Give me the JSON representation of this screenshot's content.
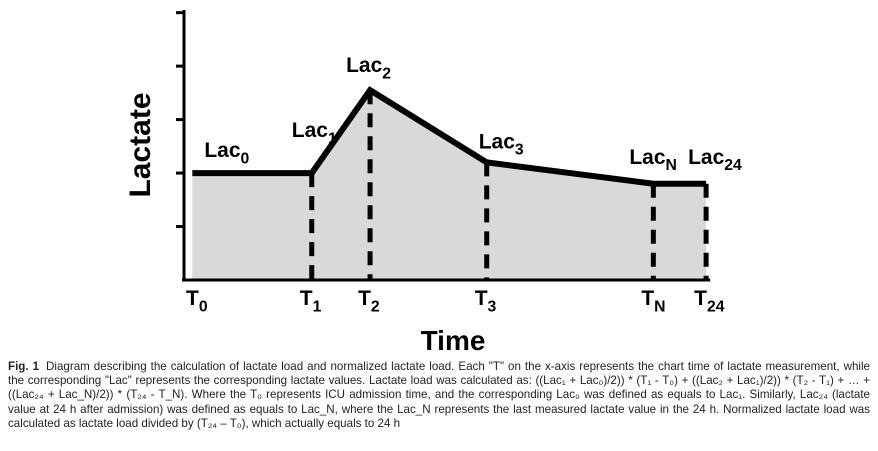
{
  "chart_data": {
    "type": "area",
    "ylabel": "Lactate",
    "xlabel": "Time",
    "x_ticks": [
      {
        "base": "T",
        "sub": "0"
      },
      {
        "base": "T",
        "sub": "1"
      },
      {
        "base": "T",
        "sub": "2"
      },
      {
        "base": "T",
        "sub": "3"
      },
      {
        "base": "T",
        "sub": "N"
      },
      {
        "base": "T",
        "sub": "24"
      }
    ],
    "points": [
      {
        "x": 0.0,
        "y": 2.0,
        "label_base": "Lac",
        "label_sub": "0"
      },
      {
        "x": 2.15,
        "y": 2.0,
        "label_base": "Lac",
        "label_sub": "1"
      },
      {
        "x": 3.2,
        "y": 3.55,
        "label_base": "Lac",
        "label_sub": "2"
      },
      {
        "x": 5.3,
        "y": 2.2,
        "label_base": "Lac",
        "label_sub": "3"
      },
      {
        "x": 8.3,
        "y": 1.8,
        "label_base": "Lac",
        "label_sub": "N"
      },
      {
        "x": 9.25,
        "y": 1.8,
        "label_base": "Lac",
        "label_sub": "24"
      }
    ],
    "xlim": [
      -0.15,
      9.5
    ],
    "ylim": [
      0,
      3.0
    ],
    "ymax_axis": 5.05,
    "y_ticks_count": 5,
    "fill_color": "#d9d9d9",
    "line_color": "#000000"
  },
  "caption": {
    "fig_label": "Fig. 1",
    "text": "Diagram describing the calculation of lactate load and normalized lactate load. Each \"T\" on the x-axis represents the chart time of lactate measurement, while the corresponding \"Lac\" represents the corresponding lactate values. Lactate load was calculated as: ((Lac₁ + Lac₀)/2)) * (T₁ - T₀) + ((Lac₂ + Lac₁)/2)) * (T₂ - T₁) + … + ((Lac₂₄ + Lac_N)/2)) * (T₂₄ - T_N). Where the T₀ represents ICU admission time, and the corresponding Lac₀ was defined as equals to Lac₁. Similarly, Lac₂₄ (lactate value at 24 h after admission) was defined as equals to Lac_N, where the Lac_N represents the last measured lactate value in the 24 h. Normalized lactate load was calculated as lactate load divided by (T₂₄ – T₀), which actually equals to 24 h"
  }
}
